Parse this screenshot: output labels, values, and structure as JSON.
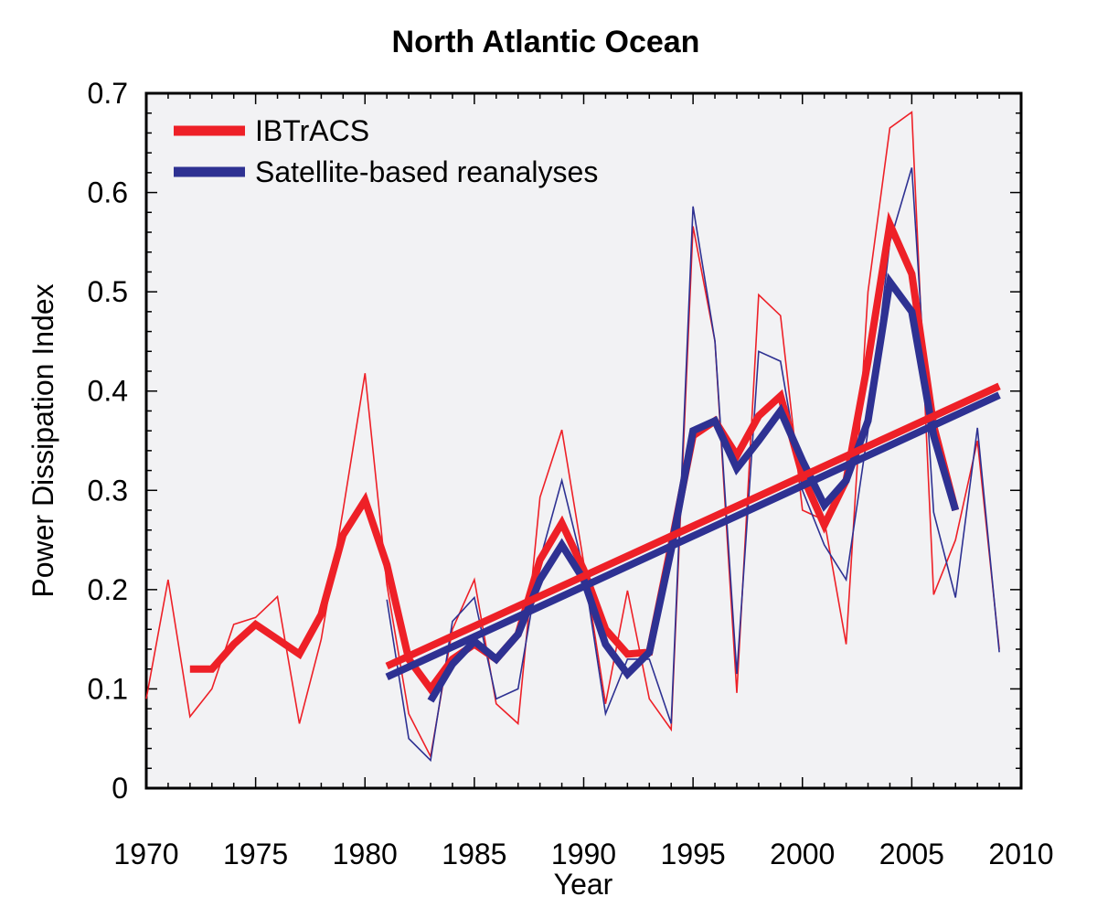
{
  "chart_data": {
    "type": "line",
    "title": "North Atlantic Ocean",
    "xlabel": "Year",
    "ylabel": "Power Dissipation Index",
    "xlim": [
      1970,
      2010
    ],
    "ylim": [
      0,
      0.7
    ],
    "x_ticks": [
      "1970",
      "1975",
      "1980",
      "1985",
      "1990",
      "1995",
      "2000",
      "2005",
      "2010"
    ],
    "y_ticks": [
      "0",
      "0.1",
      "0.2",
      "0.3",
      "0.4",
      "0.5",
      "0.6",
      "0.7"
    ],
    "grid": false,
    "legend_position": "top-left",
    "legend": [
      {
        "label": "IBTrACS",
        "color": "#ee2027"
      },
      {
        "label": "Satellite-based reanalyses",
        "color": "#2e3192"
      }
    ],
    "series": [
      {
        "name": "IBTrACS",
        "color": "#ee2027",
        "style": "thin",
        "x": [
          1970,
          1971,
          1972,
          1973,
          1974,
          1975,
          1976,
          1977,
          1978,
          1979,
          1980,
          1981,
          1982,
          1983,
          1984,
          1985,
          1986,
          1987,
          1988,
          1989,
          1990,
          1991,
          1992,
          1993,
          1994,
          1995,
          1996,
          1997,
          1998,
          1999,
          2000,
          2001,
          2002,
          2003,
          2004,
          2005,
          2006,
          2007,
          2008,
          2009
        ],
        "y": [
          0.09,
          0.21,
          0.072,
          0.1,
          0.165,
          0.172,
          0.193,
          0.065,
          0.15,
          0.28,
          0.418,
          0.205,
          0.075,
          0.032,
          0.16,
          0.21,
          0.085,
          0.065,
          0.293,
          0.361,
          0.227,
          0.085,
          0.199,
          0.09,
          0.059,
          0.566,
          0.45,
          0.096,
          0.497,
          0.476,
          0.28,
          0.27,
          0.145,
          0.5,
          0.665,
          0.681,
          0.195,
          0.25,
          0.35,
          0.14
        ]
      },
      {
        "name": "Satellite-based reanalyses",
        "color": "#2e3192",
        "style": "thin",
        "x": [
          1981,
          1982,
          1983,
          1984,
          1985,
          1986,
          1987,
          1988,
          1989,
          1990,
          1991,
          1992,
          1993,
          1994,
          1995,
          1996,
          1997,
          1998,
          1999,
          2000,
          2001,
          2002,
          2003,
          2004,
          2005,
          2006,
          2007,
          2008,
          2009
        ],
        "y": [
          0.19,
          0.05,
          0.028,
          0.168,
          0.192,
          0.09,
          0.1,
          0.23,
          0.31,
          0.22,
          0.075,
          0.13,
          0.13,
          0.065,
          0.586,
          0.45,
          0.115,
          0.44,
          0.43,
          0.3,
          0.245,
          0.21,
          0.36,
          0.55,
          0.625,
          0.278,
          0.192,
          0.363,
          0.137
        ]
      },
      {
        "name": "IBTrACS",
        "color": "#ee2027",
        "style": "smoothed",
        "x": [
          1972,
          1973,
          1974,
          1975,
          1976,
          1977,
          1978,
          1979,
          1980,
          1981,
          1982,
          1983,
          1984,
          1985,
          1986,
          1987,
          1988,
          1989,
          1990,
          1991,
          1992,
          1993,
          1994,
          1995,
          1996,
          1997,
          1998,
          1999,
          2000,
          2001,
          2002,
          2003,
          2004,
          2005,
          2006,
          2007
        ],
        "y": [
          0.12,
          0.12,
          0.145,
          0.165,
          0.15,
          0.135,
          0.175,
          0.255,
          0.29,
          0.225,
          0.13,
          0.1,
          0.13,
          0.145,
          0.13,
          0.155,
          0.23,
          0.267,
          0.22,
          0.16,
          0.135,
          0.137,
          0.245,
          0.355,
          0.37,
          0.335,
          0.375,
          0.395,
          0.315,
          0.265,
          0.31,
          0.43,
          0.568,
          0.518,
          0.365,
          0.28
        ]
      },
      {
        "name": "Satellite-based reanalyses",
        "color": "#2e3192",
        "style": "smoothed",
        "x": [
          1983,
          1984,
          1985,
          1986,
          1987,
          1988,
          1989,
          1990,
          1991,
          1992,
          1993,
          1994,
          1995,
          1996,
          1997,
          1998,
          1999,
          2000,
          2001,
          2002,
          2003,
          2004,
          2005,
          2006,
          2007
        ],
        "y": [
          0.088,
          0.125,
          0.148,
          0.13,
          0.155,
          0.21,
          0.245,
          0.21,
          0.145,
          0.115,
          0.137,
          0.24,
          0.36,
          0.37,
          0.322,
          0.35,
          0.38,
          0.33,
          0.285,
          0.31,
          0.37,
          0.51,
          0.48,
          0.355,
          0.28
        ]
      },
      {
        "name": "IBTrACS",
        "color": "#ee2027",
        "style": "trend",
        "x": [
          1981,
          2009
        ],
        "y": [
          0.123,
          0.405
        ]
      },
      {
        "name": "Satellite-based reanalyses",
        "color": "#2e3192",
        "style": "trend",
        "x": [
          1981,
          2009
        ],
        "y": [
          0.112,
          0.396
        ]
      }
    ]
  }
}
